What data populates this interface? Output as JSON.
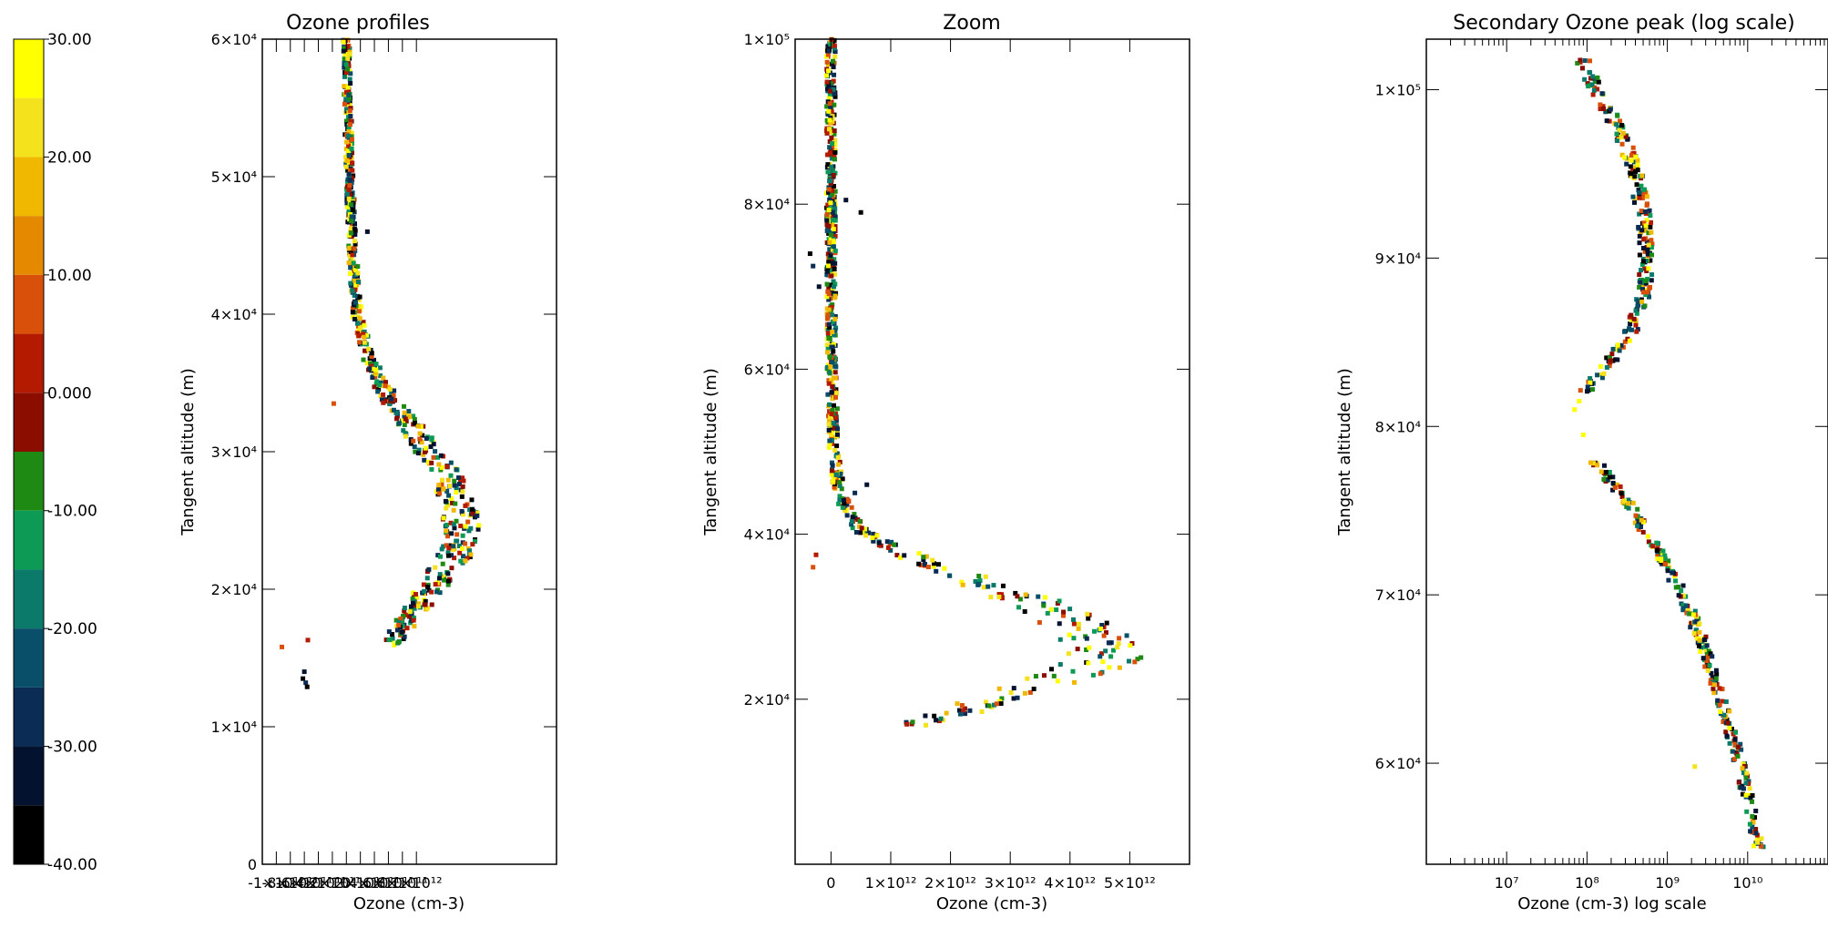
{
  "colorbar": {
    "labels": [
      "30.00",
      "20.00",
      "10.00",
      "0.000",
      "-10.00",
      "-20.00",
      "-30.00",
      "-40.00"
    ],
    "values": [
      30,
      20,
      10,
      0,
      -10,
      -20,
      -30,
      -40
    ],
    "bands": [
      {
        "from": 25,
        "to": 30,
        "color": "#ffff00"
      },
      {
        "from": 20,
        "to": 25,
        "color": "#f4e21c"
      },
      {
        "from": 15,
        "to": 20,
        "color": "#f0b800"
      },
      {
        "from": 10,
        "to": 15,
        "color": "#e58a00"
      },
      {
        "from": 5,
        "to": 10,
        "color": "#d8500a"
      },
      {
        "from": 0,
        "to": 5,
        "color": "#b41a00"
      },
      {
        "from": -5,
        "to": 0,
        "color": "#8a0d00"
      },
      {
        "from": -10,
        "to": -5,
        "color": "#1f8a13"
      },
      {
        "from": -15,
        "to": -10,
        "color": "#0d9a55"
      },
      {
        "from": -20,
        "to": -15,
        "color": "#0b7a6a"
      },
      {
        "from": -25,
        "to": -20,
        "color": "#0a4f6a"
      },
      {
        "from": -30,
        "to": -25,
        "color": "#0a2c55"
      },
      {
        "from": -35,
        "to": -30,
        "color": "#03122e"
      },
      {
        "from": -40,
        "to": -35,
        "color": "#000000"
      }
    ]
  },
  "chart_data": [
    {
      "type": "scatter",
      "title": "Ozone profiles",
      "xlabel": "Ozone (cm-3)",
      "ylabel": "Tangent altitude (m)",
      "xlim": [
        -1200000000000.0,
        3000000000000.0
      ],
      "ylim": [
        0,
        60000
      ],
      "x_ticks": [
        -1000000000000.0,
        -800000000000.0,
        -600000000000.0,
        -400000000000.0,
        -200000000000.0,
        0,
        200000000000.0,
        400000000000.0,
        600000000000.0,
        800000000000.0,
        1000000000000.0
      ],
      "x_tick_labels": [
        "-1×10¹²",
        "-8×10¹¹",
        "-6×10¹¹",
        "-4×10¹¹",
        "-2×10¹¹",
        "0",
        "2×10¹¹",
        "4×10¹¹",
        "6×10¹¹",
        "8×10¹¹",
        "1×10¹²"
      ],
      "y_ticks": [
        0,
        10000,
        20000,
        30000,
        40000,
        50000,
        60000
      ],
      "y_tick_labels": [
        "0",
        "1×10⁴",
        "2×10⁴",
        "3×10⁴",
        "4×10⁴",
        "5×10⁴",
        "6×10⁴"
      ],
      "profile": {
        "altitude": [
          60000,
          55000,
          50000,
          45000,
          40000,
          37000,
          34000,
          32000,
          30000,
          28000,
          26000,
          24000,
          22000,
          20000,
          18000,
          16000
        ],
        "ozone": [
          0,
          20000000000.0,
          50000000000.0,
          80000000000.0,
          150000000000.0,
          300000000000.0,
          600000000000.0,
          900000000000.0,
          1200000000000.0,
          1450000000000.0,
          1600000000000.0,
          1650000000000.0,
          1500000000000.0,
          1200000000000.0,
          900000000000.0,
          650000000000.0
        ]
      },
      "outliers": [
        {
          "x": -920000000000.0,
          "y": 15800,
          "temp": 5
        },
        {
          "x": -550000000000.0,
          "y": 16300,
          "temp": 0
        },
        {
          "x": -600000000000.0,
          "y": 14000,
          "temp": -35
        },
        {
          "x": -620000000000.0,
          "y": 13500,
          "temp": -38
        },
        {
          "x": -580000000000.0,
          "y": 13200,
          "temp": -30
        },
        {
          "x": -560000000000.0,
          "y": 12900,
          "temp": -38
        },
        {
          "x": -180000000000.0,
          "y": 33500,
          "temp": 5
        },
        {
          "x": 300000000000.0,
          "y": 46000,
          "temp": -35
        }
      ]
    },
    {
      "type": "scatter",
      "title": "Zoom",
      "xlabel": "Ozone (cm-3)",
      "ylabel": "Tangent altitude (m)",
      "xlim": [
        -600000000000.0,
        6000000000000.0
      ],
      "ylim": [
        0,
        100000
      ],
      "x_ticks": [
        0,
        1000000000000.0,
        2000000000000.0,
        3000000000000.0,
        4000000000000.0,
        5000000000000.0
      ],
      "x_tick_labels": [
        "0",
        "1×10¹²",
        "2×10¹²",
        "3×10¹²",
        "4×10¹²",
        "5×10¹²"
      ],
      "y_ticks": [
        20000,
        40000,
        60000,
        80000,
        100000
      ],
      "y_tick_labels": [
        "2×10⁴",
        "4×10⁴",
        "6×10⁴",
        "8×10⁴",
        "1×10⁵"
      ],
      "profile": {
        "altitude": [
          100000,
          80000,
          60000,
          50000,
          46000,
          43000,
          40000,
          38000,
          36000,
          34000,
          32000,
          30000,
          28000,
          26000,
          24000,
          22000,
          20000,
          18000,
          17000
        ],
        "ozone": [
          0,
          0,
          10000000000.0,
          50000000000.0,
          120000000000.0,
          250000000000.0,
          600000000000.0,
          1100000000000.0,
          1800000000000.0,
          2600000000000.0,
          3300000000000.0,
          3900000000000.0,
          4300000000000.0,
          4600000000000.0,
          4400000000000.0,
          3600000000000.0,
          2800000000000.0,
          2000000000000.0,
          1500000000000.0
        ]
      },
      "outliers": [
        {
          "x": -350000000000.0,
          "y": 74000,
          "temp": -38
        },
        {
          "x": -300000000000.0,
          "y": 72500,
          "temp": -30
        },
        {
          "x": -200000000000.0,
          "y": 70000,
          "temp": -35
        },
        {
          "x": 250000000000.0,
          "y": 80500,
          "temp": -35
        },
        {
          "x": 500000000000.0,
          "y": 79000,
          "temp": -38
        },
        {
          "x": -300000000000.0,
          "y": 36000,
          "temp": 5
        },
        {
          "x": -250000000000.0,
          "y": 37500,
          "temp": 0
        },
        {
          "x": 400000000000.0,
          "y": 45000,
          "temp": -30
        },
        {
          "x": 600000000000.0,
          "y": 46000,
          "temp": -35
        }
      ]
    },
    {
      "type": "scatter",
      "title": "Secondary Ozone peak (log scale)",
      "xlabel": "Ozone (cm-3) log scale",
      "ylabel": "Tangent altitude (m)",
      "x_scale": "log",
      "xlim": [
        1000000.0,
        100000000000.0
      ],
      "ylim": [
        54000,
        103000
      ],
      "x_ticks": [
        10000000.0,
        100000000.0,
        1000000000.0,
        10000000000.0
      ],
      "x_tick_labels": [
        "10⁷",
        "10⁸",
        "10⁹",
        "10¹⁰"
      ],
      "y_ticks": [
        60000,
        70000,
        80000,
        90000,
        100000
      ],
      "y_tick_labels": [
        "6×10⁴",
        "7×10⁴",
        "8×10⁴",
        "9×10⁴",
        "1×10⁵"
      ],
      "profile_upper": {
        "altitude": [
          102000,
          100000,
          98000,
          96000,
          94000,
          92000,
          90000,
          88000,
          86000,
          84000,
          82000
        ],
        "ozone": [
          80000000.0,
          130000000.0,
          220000000.0,
          350000000.0,
          450000000.0,
          520000000.0,
          560000000.0,
          500000000.0,
          380000000.0,
          200000000.0,
          90000000.0
        ]
      },
      "profile_lower": {
        "altitude": [
          78000,
          76000,
          74000,
          72000,
          70000,
          68000,
          66000,
          64000,
          62000,
          60000,
          58000,
          56000,
          55000
        ],
        "ozone": [
          120000000.0,
          250000000.0,
          500000000.0,
          900000000.0,
          1500000000.0,
          2300000000.0,
          3300000000.0,
          4500000000.0,
          6000000000.0,
          8000000000.0,
          10000000000.0,
          12500000000.0,
          14000000000.0
        ]
      },
      "outliers": [
        {
          "x": 80000000.0,
          "y": 81500,
          "temp": 25
        },
        {
          "x": 70000000.0,
          "y": 81000,
          "temp": 25
        },
        {
          "x": 90000000.0,
          "y": 79500,
          "temp": 25
        },
        {
          "x": 2200000000.0,
          "y": 59800,
          "temp": 20
        }
      ]
    }
  ]
}
